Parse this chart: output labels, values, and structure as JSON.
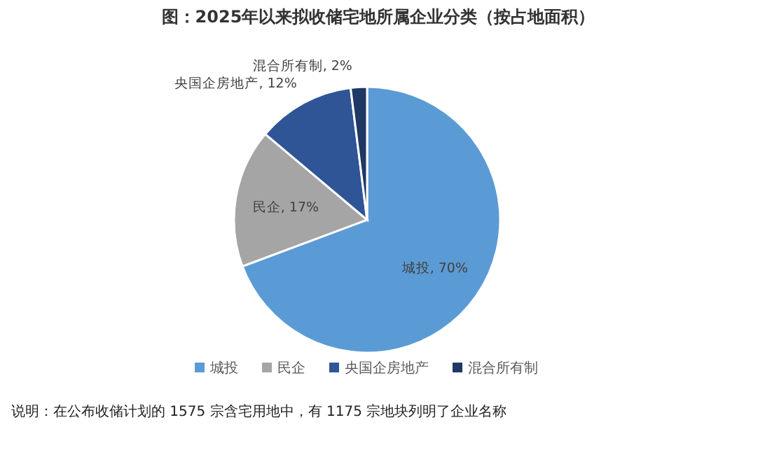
{
  "chart_data": {
    "type": "pie",
    "title": "图：2025年以来拟收储宅地所属企业分类（按占地面积）",
    "categories": [
      "城投",
      "民企",
      "央国企房地产",
      "混合所有制"
    ],
    "values": [
      70,
      17,
      12,
      2
    ],
    "colors": [
      "#5b9bd5",
      "#a5a5a5",
      "#2f5597",
      "#1f3864"
    ],
    "value_labels": [
      ", 70%",
      ", 17%",
      ", 12%",
      ", 2%"
    ],
    "legend": "bottom",
    "annotations": [
      "说明：在公布收储计划的 1575 宗含宅用地中，有 1175 宗地块列明了企业名称"
    ]
  }
}
